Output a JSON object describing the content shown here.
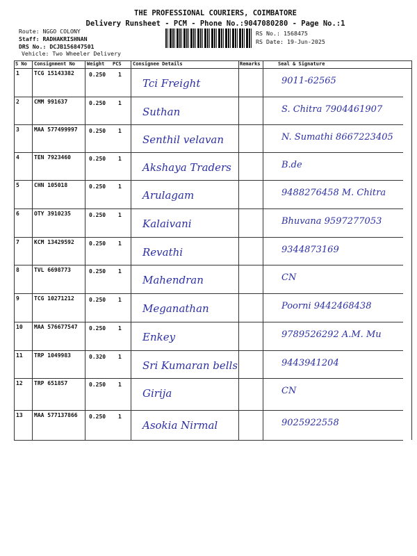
{
  "header": {
    "company": "THE PROFESSIONAL COURIERS, COIMBATORE",
    "subtitle": "Delivery Runsheet - PCM - Phone No.:9047080280 - Page No.:1",
    "route": "Route: NGGO COLONY",
    "staff": "Staff: RADHAKRISHNAN",
    "drs": "DRS No.: DCJB156847501",
    "vehicle": "Vehicle: Two Wheeler Delivery",
    "rs_no": "RS No.: 1568475",
    "rs_date": "RS Date: 19-Jun-2025"
  },
  "table": {
    "columns": [
      "S No",
      "Consignment No",
      "Weight",
      "PCS",
      "Consignee Details",
      "Remarks",
      "Seal & Signature"
    ],
    "rows": [
      {
        "sno": "1",
        "consignment": "TCG 15143382",
        "weight": "0.250",
        "pcs": "1",
        "consignee": "Tci Freight",
        "signature": "9011-62565"
      },
      {
        "sno": "2",
        "consignment": "CMM 991637",
        "weight": "0.250",
        "pcs": "1",
        "consignee": "Suthan",
        "signature": "S. Chitra 7904461907"
      },
      {
        "sno": "3",
        "consignment": "MAA 577499997",
        "weight": "0.250",
        "pcs": "1",
        "consignee": "Senthil velavan",
        "signature": "N. Sumathi 8667223405"
      },
      {
        "sno": "4",
        "consignment": "TEN 7923460",
        "weight": "0.250",
        "pcs": "1",
        "consignee": "Akshaya Traders",
        "signature": "B.de"
      },
      {
        "sno": "5",
        "consignment": "CHN 105018",
        "weight": "0.250",
        "pcs": "1",
        "consignee": "Arulagam",
        "signature": "9488276458 M. Chitra"
      },
      {
        "sno": "6",
        "consignment": "OTY 3910235",
        "weight": "0.250",
        "pcs": "1",
        "consignee": "Kalaivani",
        "signature": "Bhuvana 9597277053"
      },
      {
        "sno": "7",
        "consignment": "KCM 13429592",
        "weight": "0.250",
        "pcs": "1",
        "consignee": "Revathi",
        "signature": "9344873169"
      },
      {
        "sno": "8",
        "consignment": "TVL 6698773",
        "weight": "0.250",
        "pcs": "1",
        "consignee": "Mahendran",
        "signature": "CN"
      },
      {
        "sno": "9",
        "consignment": "TCG 10271212",
        "weight": "0.250",
        "pcs": "1",
        "consignee": "Meganathan",
        "signature": "Poorni 9442468438"
      },
      {
        "sno": "10",
        "consignment": "MAA 576677547",
        "weight": "0.250",
        "pcs": "1",
        "consignee": "Enkey",
        "signature": "9789526292 A.M. Mu"
      },
      {
        "sno": "11",
        "consignment": "TRP 1049983",
        "weight": "0.320",
        "pcs": "1",
        "consignee": "Sri Kumaran bells",
        "signature": "9443941204"
      },
      {
        "sno": "12",
        "consignment": "TRP 651857",
        "weight": "0.250",
        "pcs": "1",
        "consignee": "Girija",
        "signature": "CN"
      },
      {
        "sno": "13",
        "consignment": "MAA 577137866",
        "weight": "0.250",
        "pcs": "1",
        "consignee": "Asokia Nirmal",
        "signature": "9025922558"
      }
    ]
  },
  "colors": {
    "ink": "#2b2fa3",
    "print": "#111111"
  }
}
